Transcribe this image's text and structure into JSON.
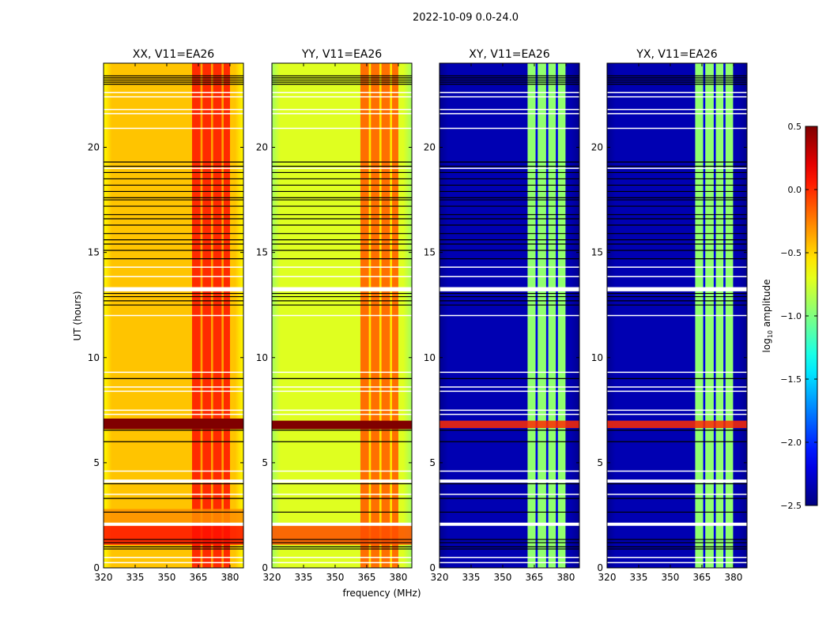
{
  "chart_data": {
    "type": "heatmap",
    "title": "2022-10-09 0.0-24.0",
    "xlabel": "frequency (MHz)",
    "ylabel": "UT (hours)",
    "xlim": [
      320,
      386.4
    ],
    "ylim": [
      0,
      24
    ],
    "xticks": [
      "320",
      "335",
      "350",
      "365",
      "380"
    ],
    "xtick_values": [
      320,
      335,
      350,
      365,
      380
    ],
    "yticks": [
      "0",
      "5",
      "10",
      "15",
      "20"
    ],
    "ytick_values": [
      0,
      5,
      10,
      15,
      20
    ],
    "colorbar": {
      "label_prefix": "log",
      "label_sub": "10",
      "label_suffix": " amplitude",
      "range": [
        -2.5,
        0.5
      ],
      "colormap": "jet",
      "ticks": [
        "0.5",
        "0.0",
        "−0.5",
        "−1.0",
        "−1.5",
        "−2.0",
        "−2.5"
      ],
      "tick_values": [
        0.5,
        0.0,
        -0.5,
        -1.0,
        -1.5,
        -2.0,
        -2.5
      ]
    },
    "panels": [
      {
        "title": "XX, V11=EA26",
        "base": -0.45,
        "edge": -0.62,
        "rfi": 0.0,
        "gap": -0.35,
        "rfi_columns": [
          [
            362,
            366
          ],
          [
            367,
            371
          ],
          [
            372,
            376
          ],
          [
            377,
            380
          ]
        ],
        "segments": [
          {
            "t": [
              1.1,
              2.0
            ],
            "v": 0.08
          },
          {
            "t": [
              2.15,
              2.8
            ],
            "v": -0.3
          },
          {
            "t": [
              6.6,
              7.1
            ],
            "v": 0.5
          }
        ]
      },
      {
        "title": "YY, V11=EA26",
        "base": -0.72,
        "edge": -0.9,
        "rfi": -0.2,
        "gap": -0.55,
        "rfi_columns": [
          [
            362,
            366
          ],
          [
            367,
            371
          ],
          [
            372,
            376
          ],
          [
            377,
            380
          ]
        ],
        "segments": [
          {
            "t": [
              1.1,
              2.0
            ],
            "v": -0.1
          },
          {
            "t": [
              6.6,
              7.0
            ],
            "v": 0.5
          }
        ]
      },
      {
        "title": "XY, V11=EA26",
        "base": -2.35,
        "edge": -2.45,
        "rfi": -0.95,
        "gap": -2.2,
        "rfi_columns": [
          [
            361.8,
            365.6
          ],
          [
            366.6,
            370.6
          ],
          [
            371.6,
            375.2
          ],
          [
            376.2,
            379.8
          ]
        ],
        "segments": [
          {
            "t": [
              6.65,
              7.0
            ],
            "v": 0.0
          }
        ]
      },
      {
        "title": "YX, V11=EA26",
        "base": -2.35,
        "edge": -2.45,
        "rfi": -0.95,
        "gap": -2.2,
        "rfi_columns": [
          [
            361.8,
            365.6
          ],
          [
            366.6,
            370.6
          ],
          [
            371.6,
            375.2
          ],
          [
            376.2,
            379.8
          ]
        ],
        "segments": [
          {
            "t": [
              6.65,
              7.0
            ],
            "v": 0.0
          }
        ]
      }
    ],
    "flagged_white_rows": [
      22.6,
      22.4,
      21.8,
      21.6,
      20.9,
      19.0,
      14.3,
      13.85,
      12.0,
      9.3,
      8.6,
      8.4,
      7.5,
      7.3,
      4.6,
      3.5,
      0.5,
      0.25
    ],
    "flagged_white_bands": [
      [
        13.15,
        13.35
      ],
      [
        4.05,
        4.2
      ],
      [
        2.0,
        2.15
      ]
    ],
    "black_rows": [
      23.4,
      23.3,
      23.2,
      23.1,
      23.0,
      19.3,
      19.1,
      18.8,
      18.5,
      18.2,
      17.9,
      17.6,
      17.5,
      17.2,
      16.8,
      16.6,
      16.3,
      15.9,
      15.6,
      15.4,
      15.1,
      14.7,
      13.05,
      12.9,
      12.7,
      12.5,
      9.0,
      6.55,
      6.0,
      4.0,
      3.3,
      2.65,
      1.35,
      1.2,
      1.0,
      0.9
    ]
  }
}
